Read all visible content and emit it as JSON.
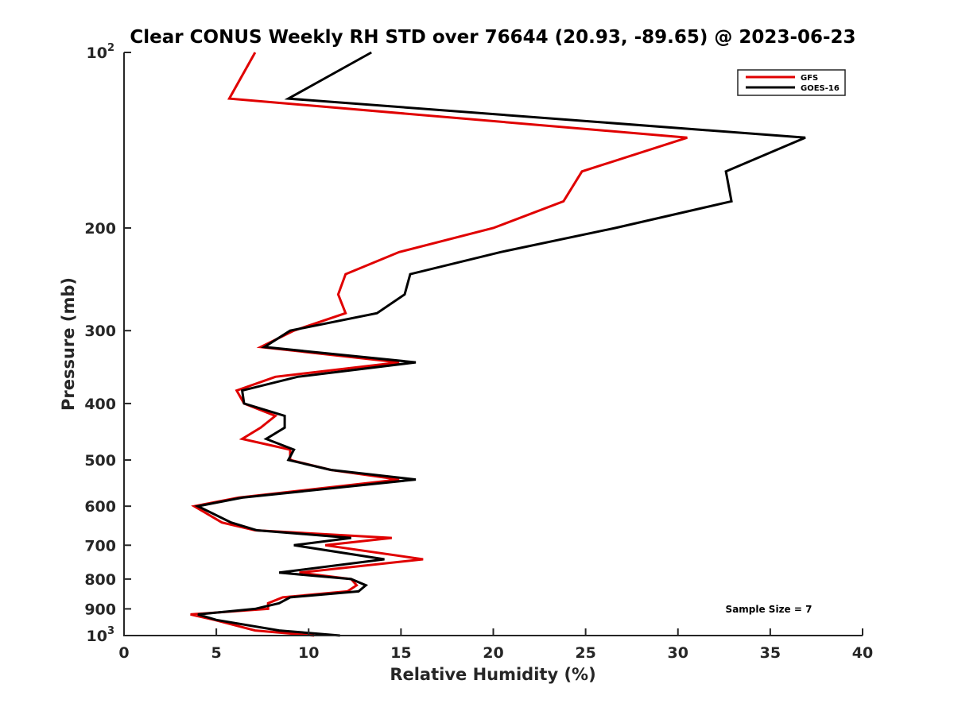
{
  "chart_data": {
    "type": "line",
    "title": "Clear CONUS Weekly RH STD over 76644 (20.93, -89.65) @ 2023-06-23",
    "xlabel": "Relative Humidity (%)",
    "ylabel": "Pressure (mb)",
    "xlim": [
      0,
      40
    ],
    "ylim": [
      100,
      1000
    ],
    "yscale": "log",
    "yreversed": true,
    "grid": false,
    "legend_position": "top-right",
    "xticks": [
      0,
      5,
      10,
      15,
      20,
      25,
      30,
      35,
      40
    ],
    "xtick_labels": [
      "0",
      "5",
      "10",
      "15",
      "20",
      "25",
      "30",
      "35",
      "40"
    ],
    "yticks": [
      100,
      200,
      300,
      400,
      500,
      600,
      700,
      800,
      900,
      1000
    ],
    "ytick_labels": [
      "10",
      "200",
      "300",
      "400",
      "500",
      "600",
      "700",
      "800",
      "900",
      "10"
    ],
    "ytick_superscripts": [
      "2",
      "",
      "",
      "",
      "",
      "",
      "",
      "",
      "",
      "3"
    ],
    "pressure_levels": [
      100,
      120,
      140,
      160,
      180,
      200,
      220,
      240,
      260,
      280,
      300,
      320,
      340,
      360,
      380,
      400,
      420,
      440,
      460,
      480,
      500,
      520,
      540,
      580,
      600,
      640,
      660,
      680,
      700,
      740,
      780,
      800,
      820,
      840,
      860,
      880,
      900,
      920,
      940,
      980,
      1000
    ],
    "series": [
      {
        "name": "GFS",
        "color": "#e00000",
        "values": [
          7.1,
          5.7,
          30.5,
          24.8,
          23.8,
          20.0,
          14.9,
          12.0,
          11.6,
          12.0,
          9.2,
          7.4,
          14.9,
          8.2,
          6.1,
          6.5,
          8.2,
          7.4,
          6.4,
          9.0,
          9.0,
          11.2,
          14.9,
          6.2,
          3.8,
          5.3,
          7.1,
          14.5,
          10.9,
          16.2,
          9.5,
          12.3,
          12.6,
          12.1,
          8.6,
          7.8,
          7.8,
          3.6,
          4.9,
          7.1,
          10.3
        ]
      },
      {
        "name": "GOES-16",
        "color": "#000000",
        "values": [
          13.4,
          8.9,
          36.9,
          32.6,
          32.9,
          26.6,
          20.4,
          15.5,
          15.2,
          13.7,
          9.0,
          7.6,
          15.8,
          9.4,
          6.4,
          6.5,
          8.7,
          8.7,
          7.7,
          9.2,
          8.9,
          11.2,
          15.8,
          6.4,
          4.0,
          5.8,
          7.2,
          12.3,
          9.2,
          14.1,
          8.4,
          12.3,
          13.1,
          12.7,
          9.0,
          8.4,
          7.1,
          4.0,
          5.0,
          8.4,
          11.7
        ]
      }
    ],
    "annotations": [
      {
        "text": "Sample Size = 7",
        "position": "bottom-right"
      }
    ]
  }
}
